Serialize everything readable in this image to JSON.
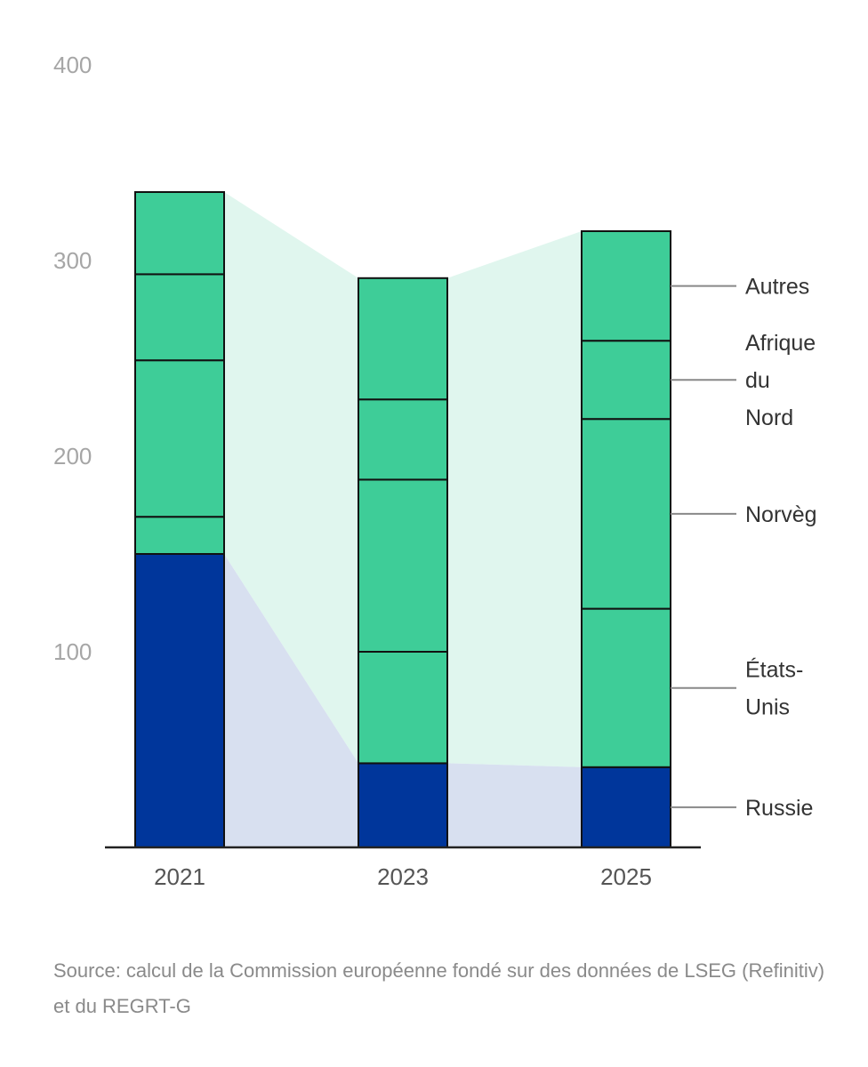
{
  "chart_data": {
    "type": "stacked-bar",
    "title": "",
    "xlabel": "",
    "ylabel": "",
    "ylim": [
      0,
      400
    ],
    "yticks": [
      100,
      200,
      300,
      400
    ],
    "categories": [
      "2021",
      "2023",
      "2025"
    ],
    "series": [
      {
        "name": "Russie",
        "color": "#00369b",
        "values": [
          150,
          43,
          41
        ]
      },
      {
        "name": "États-Unis",
        "color": "#3ecd98",
        "values": [
          19,
          57,
          81
        ]
      },
      {
        "name": "Norvège",
        "color": "#3ecd98",
        "values": [
          80,
          88,
          97
        ]
      },
      {
        "name": "Afrique du Nord",
        "color": "#3ecd98",
        "values": [
          44,
          41,
          40
        ]
      },
      {
        "name": "Autres",
        "color": "#3ecd98",
        "values": [
          42,
          62,
          56
        ]
      }
    ],
    "series_labels": [
      {
        "series": "Autres",
        "lines": [
          "Autres"
        ]
      },
      {
        "series": "Afrique du Nord",
        "lines": [
          "Afrique",
          "du",
          "Nord"
        ]
      },
      {
        "series": "Norvège",
        "lines": [
          "Norvège"
        ]
      },
      {
        "series": "États-Unis",
        "lines": [
          "États-",
          "Unis"
        ]
      },
      {
        "series": "Russie",
        "lines": [
          "Russie"
        ]
      }
    ],
    "band_colors": {
      "russia": "#d8e0f0",
      "others": "#e0f6ee"
    },
    "grid": false
  },
  "source": "Source: calcul de la Commission européenne fondé sur des données de LSEG (Refinitiv) et du REGRT-G"
}
